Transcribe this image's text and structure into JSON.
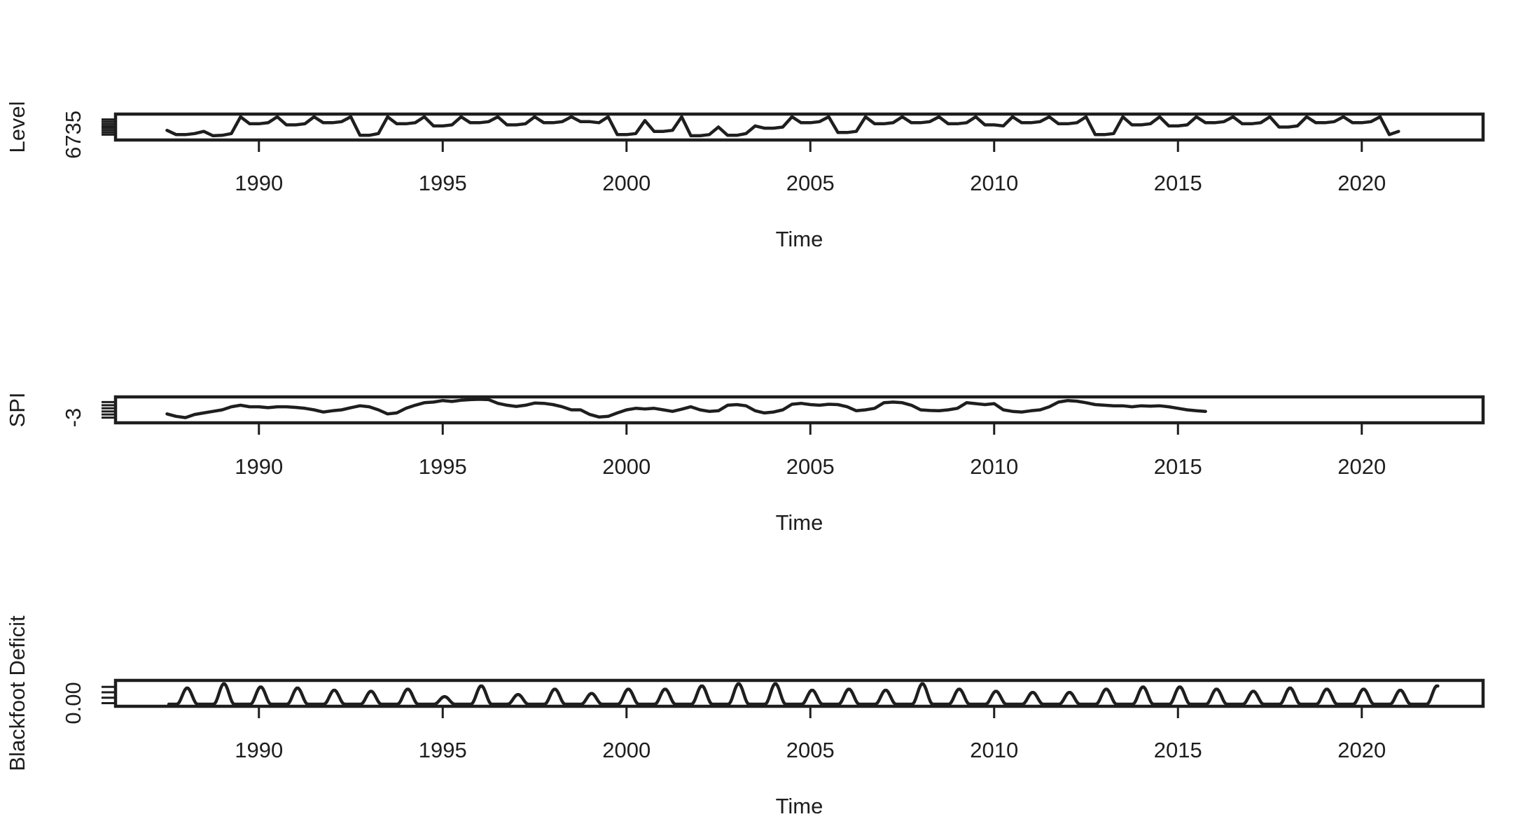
{
  "chart_data": [
    {
      "type": "line",
      "id": "level",
      "title": "",
      "xlabel": "Time",
      "ylabel": "Level",
      "xlim": [
        1986.1,
        2023.3
      ],
      "ylim": [
        0,
        1
      ],
      "xticks": [
        "1990",
        "1995",
        "2000",
        "2005",
        "2010",
        "2015",
        "2020"
      ],
      "xtick_values": [
        1990,
        1995,
        2000,
        2005,
        2010,
        2015,
        2020
      ],
      "ytick_labels": [
        "6735"
      ],
      "ytick_values": [
        0.15
      ],
      "minor_ytick_values": [
        0.25,
        0.35,
        0.45,
        0.55,
        0.65,
        0.75,
        0.85
      ],
      "x_start": 1987.5,
      "x_step": 0.25,
      "values": [
        0.35,
        0.15,
        0.15,
        0.2,
        0.3,
        0.1,
        0.12,
        0.2,
        0.97,
        0.65,
        0.65,
        0.7,
        0.97,
        0.6,
        0.6,
        0.65,
        0.97,
        0.7,
        0.7,
        0.75,
        0.97,
        0.12,
        0.12,
        0.2,
        0.97,
        0.65,
        0.65,
        0.7,
        0.97,
        0.55,
        0.55,
        0.6,
        0.97,
        0.7,
        0.7,
        0.75,
        0.97,
        0.6,
        0.6,
        0.65,
        0.97,
        0.7,
        0.7,
        0.75,
        0.97,
        0.75,
        0.75,
        0.7,
        0.97,
        0.15,
        0.15,
        0.2,
        0.8,
        0.3,
        0.3,
        0.35,
        0.97,
        0.1,
        0.1,
        0.15,
        0.5,
        0.12,
        0.12,
        0.2,
        0.55,
        0.45,
        0.45,
        0.5,
        0.97,
        0.7,
        0.7,
        0.75,
        0.97,
        0.25,
        0.25,
        0.3,
        0.97,
        0.65,
        0.65,
        0.7,
        0.97,
        0.7,
        0.7,
        0.75,
        0.97,
        0.65,
        0.65,
        0.7,
        0.97,
        0.6,
        0.6,
        0.55,
        0.97,
        0.7,
        0.7,
        0.75,
        0.97,
        0.65,
        0.65,
        0.7,
        0.97,
        0.15,
        0.15,
        0.2,
        0.97,
        0.6,
        0.6,
        0.65,
        0.97,
        0.55,
        0.55,
        0.6,
        0.97,
        0.7,
        0.7,
        0.75,
        0.97,
        0.65,
        0.65,
        0.7,
        0.97,
        0.5,
        0.5,
        0.55,
        0.97,
        0.7,
        0.7,
        0.75,
        0.97,
        0.7,
        0.7,
        0.75,
        0.97,
        0.15,
        0.3
      ]
    },
    {
      "type": "line",
      "id": "spi",
      "title": "",
      "xlabel": "Time",
      "ylabel": "SPI",
      "xlim": [
        1986.1,
        2023.3
      ],
      "ylim": [
        -4,
        3
      ],
      "xticks": [
        "1990",
        "1995",
        "2000",
        "2005",
        "2010",
        "2015",
        "2020"
      ],
      "xtick_values": [
        1990,
        1995,
        2000,
        2005,
        2010,
        2015,
        2020
      ],
      "ytick_labels": [
        "-3"
      ],
      "ytick_values": [
        -3
      ],
      "minor_ytick_values": [
        -2,
        -1,
        0,
        1,
        2
      ],
      "x_start": 1987.5,
      "x_step": 0.25,
      "values": [
        -1.8,
        -2.6,
        -3.0,
        -2.0,
        -1.5,
        -1.0,
        -0.5,
        0.5,
        1.0,
        0.5,
        0.5,
        0.2,
        0.5,
        0.5,
        0.3,
        0.0,
        -0.5,
        -1.2,
        -0.8,
        -0.5,
        0.2,
        0.8,
        0.5,
        -0.5,
        -1.8,
        -1.5,
        0.0,
        1.0,
        1.8,
        2.0,
        2.5,
        2.2,
        2.6,
        2.8,
        2.9,
        2.8,
        1.6,
        1.0,
        0.6,
        1.0,
        1.7,
        1.6,
        1.2,
        0.5,
        -0.5,
        -0.5,
        -2.0,
        -2.8,
        -2.6,
        -1.5,
        -0.5,
        0.0,
        -0.2,
        0.0,
        -0.5,
        -1.0,
        -0.3,
        0.5,
        -0.5,
        -1.0,
        -0.8,
        1.0,
        1.2,
        0.8,
        -0.8,
        -1.5,
        -1.2,
        -0.5,
        1.3,
        1.6,
        1.2,
        1.0,
        1.3,
        1.2,
        0.5,
        -0.8,
        -0.5,
        0.0,
        1.8,
        2.0,
        1.8,
        1.0,
        -0.5,
        -0.7,
        -0.8,
        -0.5,
        0.0,
        1.8,
        1.5,
        1.2,
        1.5,
        -0.5,
        -1.0,
        -1.2,
        -0.8,
        -0.5,
        0.5,
        2.0,
        2.5,
        2.3,
        1.8,
        1.2,
        1.0,
        0.8,
        0.8,
        0.5,
        0.8,
        0.7,
        0.8,
        0.5,
        0.0,
        -0.5,
        -0.8,
        -1.0
      ]
    },
    {
      "type": "line",
      "id": "blackfoot-deficit",
      "title": "",
      "xlabel": "Time",
      "ylabel": "Blackfoot Deficit",
      "xlim": [
        1986.1,
        2023.3
      ],
      "ylim": [
        0,
        1
      ],
      "xticks": [
        "1990",
        "1995",
        "2000",
        "2005",
        "2010",
        "2015",
        "2020"
      ],
      "xtick_values": [
        1990,
        1995,
        2000,
        2005,
        2010,
        2015,
        2020
      ],
      "ytick_labels": [
        "0.00"
      ],
      "ytick_values": [
        0.05
      ],
      "minor_ytick_values": [
        0.3,
        0.55,
        0.8
      ],
      "x_start": 1987.5,
      "seasonal_peak_offset": 0.55,
      "peak_halfwidth": 0.28,
      "peaks": [
        0.75,
        0.95,
        0.8,
        0.75,
        0.65,
        0.6,
        0.7,
        0.35,
        0.85,
        0.45,
        0.7,
        0.5,
        0.7,
        0.7,
        0.85,
        0.95,
        0.95,
        0.65,
        0.7,
        0.65,
        0.95,
        0.7,
        0.6,
        0.55,
        0.55,
        0.7,
        0.8,
        0.8,
        0.7,
        0.6,
        0.75,
        0.7,
        0.7,
        0.65,
        0.85
      ]
    }
  ]
}
